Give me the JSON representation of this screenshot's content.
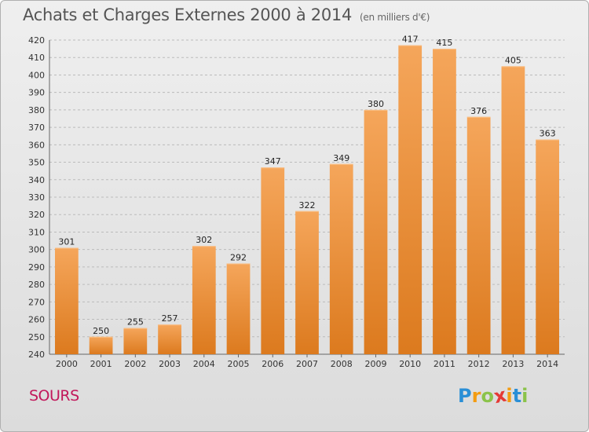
{
  "header": {
    "title": "Achats et Charges Externes 2000 à 2014",
    "unit": "(en milliers d'€)"
  },
  "footer": {
    "place": "SOURS",
    "logo": {
      "letters": [
        "P",
        "r",
        "o",
        "x",
        "i",
        "t",
        "i"
      ],
      "colors": [
        "#2a8fd6",
        "#f39c12",
        "#8bc34a",
        "#e53935",
        "#f39c12",
        "#2a8fd6",
        "#8bc34a"
      ]
    }
  },
  "colors": {
    "bar_top": "#f5a65b",
    "bar_bottom": "#dc7a1e",
    "grid": "#bbbbbb",
    "axis": "#666666"
  },
  "chart_data": {
    "type": "bar",
    "title": "Achats et Charges Externes 2000 à 2014",
    "xlabel": "",
    "ylabel": "",
    "categories": [
      "2000",
      "2001",
      "2002",
      "2003",
      "2004",
      "2005",
      "2006",
      "2007",
      "2008",
      "2009",
      "2010",
      "2011",
      "2012",
      "2013",
      "2014"
    ],
    "values": [
      301,
      250,
      255,
      257,
      302,
      292,
      347,
      322,
      349,
      380,
      417,
      415,
      376,
      405,
      363
    ],
    "ylim": [
      240,
      420
    ],
    "yticks": [
      240,
      250,
      260,
      270,
      280,
      290,
      300,
      310,
      320,
      330,
      340,
      350,
      360,
      370,
      380,
      390,
      400,
      410,
      420
    ],
    "grid": true,
    "legend": "none"
  }
}
